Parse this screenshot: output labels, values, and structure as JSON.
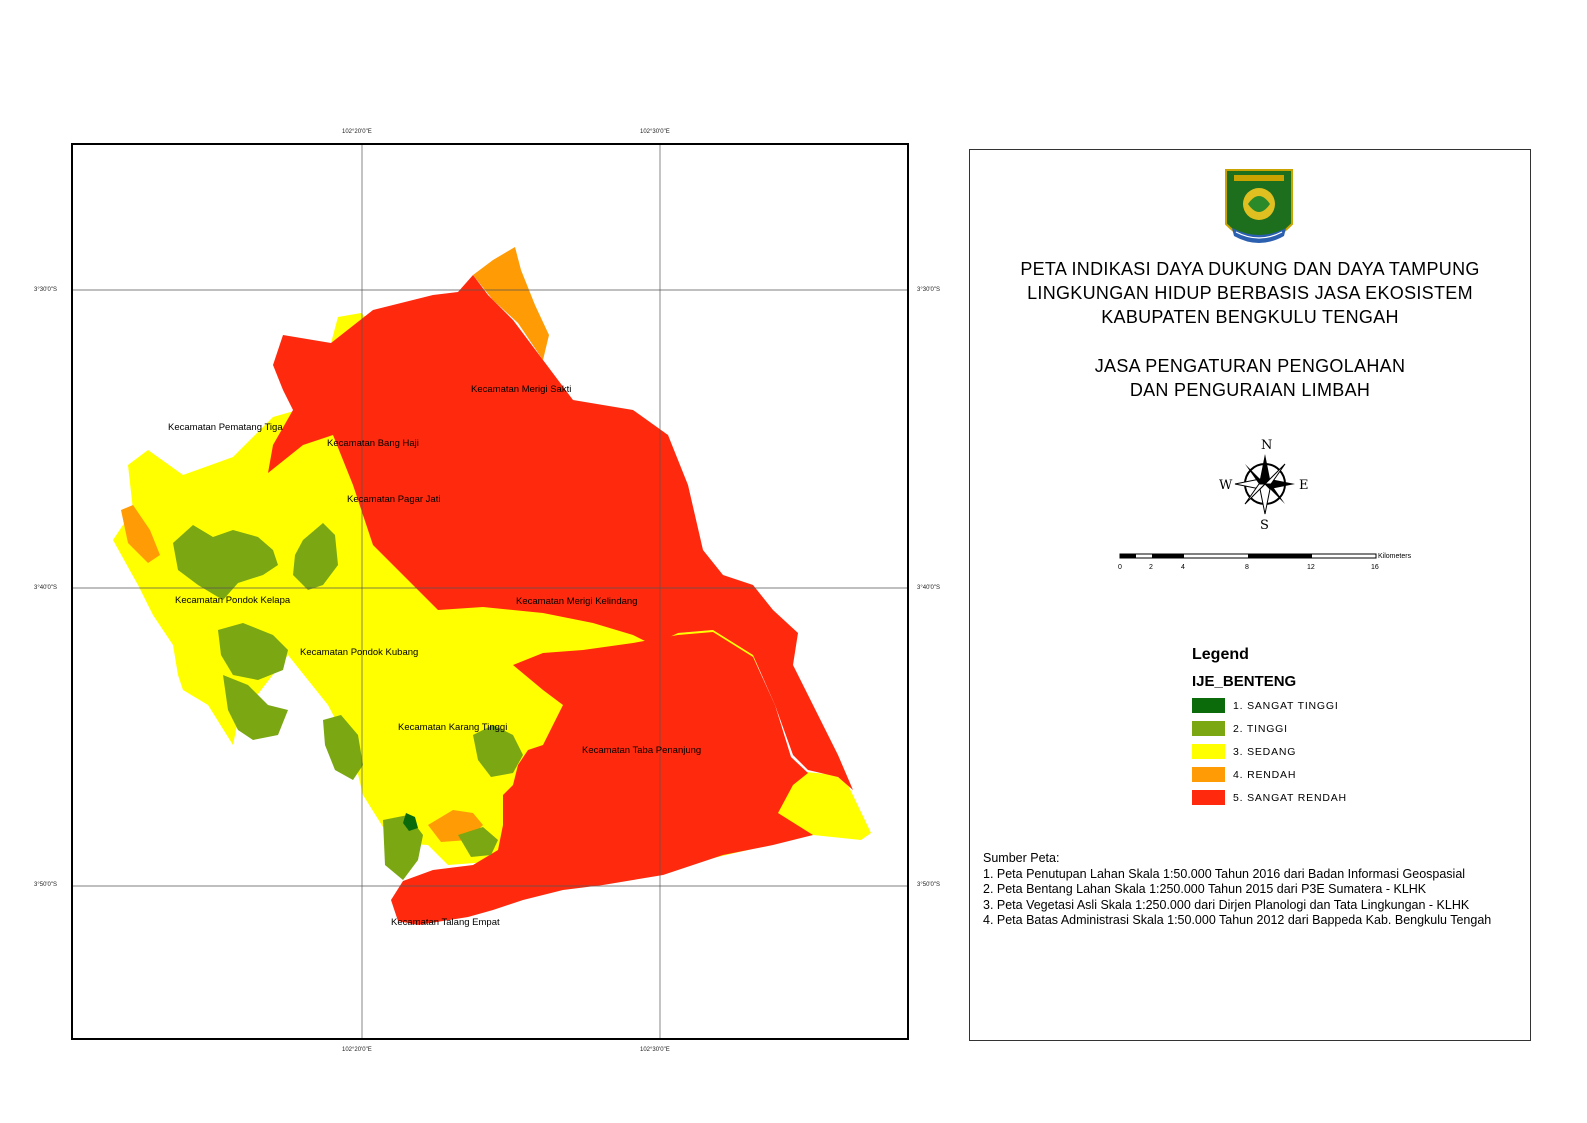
{
  "map": {
    "grid_labels": {
      "top": [
        "102°20'0\"E",
        "102°30'0\"E"
      ],
      "bottom": [
        "102°20'0\"E",
        "102°30'0\"E"
      ],
      "left": [
        "3°30'0\"S",
        "3°40'0\"S",
        "3°50'0\"S"
      ],
      "right": [
        "3°30'0\"S",
        "3°40'0\"S",
        "3°50'0\"S"
      ]
    },
    "places": [
      "Kecamatan Merigi Sakti",
      "Kecamatan Pematang Tiga",
      "Kecamatan Bang Haji",
      "Kecamatan Pagar Jati",
      "Kecamatan Pondok Kelapa",
      "Kecamatan Merigi Kelindang",
      "Kecamatan Pondok Kubang",
      "Kecamatan Karang Tinggi",
      "Kecamatan Taba Penanjung",
      "Kecamatan Talang Empat"
    ]
  },
  "title": {
    "line1": "PETA INDIKASI DAYA DUKUNG DAN DAYA TAMPUNG",
    "line2": "LINGKUNGAN HIDUP BERBASIS JASA EKOSISTEM",
    "line3": "KABUPATEN BENGKULU TENGAH",
    "sub1": "JASA PENGATURAN PENGOLAHAN",
    "sub2": "DAN PENGURAIAN LIMBAH"
  },
  "north_arrow": {
    "n": "N",
    "s": "S",
    "e": "E",
    "w": "W"
  },
  "scale_bar": {
    "unit": "Kilometers",
    "ticks": [
      "0",
      "2",
      "4",
      "8",
      "12",
      "16"
    ]
  },
  "legend": {
    "heading": "Legend",
    "layer": "IJE_BENTENG",
    "items": [
      {
        "label": "1. SANGAT TINGGI",
        "color": "#0b6b0b"
      },
      {
        "label": "2. TINGGI",
        "color": "#7aa712"
      },
      {
        "label": "3. SEDANG",
        "color": "#ffff00"
      },
      {
        "label": "4. RENDAH",
        "color": "#ff9b05"
      },
      {
        "label": "5. SANGAT RENDAH",
        "color": "#ff2a0d"
      }
    ]
  },
  "sources": {
    "heading": "Sumber Peta:",
    "lines": [
      "1. Peta Penutupan Lahan Skala 1:50.000 Tahun 2016 dari Badan Informasi Geospasial",
      "2. Peta Bentang Lahan Skala 1:250.000 Tahun 2015 dari  P3E Sumatera - KLHK",
      "3. Peta Vegetasi Asli Skala 1:250.000 dari Dirjen Planologi dan Tata Lingkungan - KLHK",
      "4. Peta Batas Administrasi Skala 1:50.000 Tahun 2012 dari Bappeda Kab. Bengkulu Tengah"
    ]
  }
}
